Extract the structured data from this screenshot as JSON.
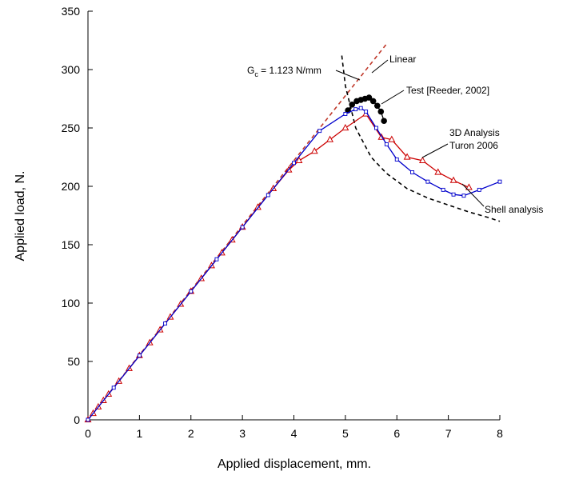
{
  "chart_data": {
    "type": "line",
    "xlabel": "Applied displacement,  mm.",
    "ylabel": "Applied load,  N.",
    "xlim": [
      0,
      8
    ],
    "ylim": [
      0,
      350
    ],
    "xticks": [
      0,
      1,
      2,
      3,
      4,
      5,
      6,
      7,
      8
    ],
    "yticks": [
      0,
      50,
      100,
      150,
      200,
      250,
      300,
      350
    ],
    "grid": false,
    "legend": "none",
    "series": [
      {
        "name": "Linear",
        "style": "dashed",
        "color": "#c0392b",
        "x": [
          0,
          5.8
        ],
        "y": [
          0,
          322
        ]
      },
      {
        "name": "Gc = 1.123 N/mm",
        "style": "dashed",
        "color": "#000000",
        "x": [
          4.93,
          5.0,
          5.2,
          5.5,
          5.8,
          6.2,
          6.6,
          7.0,
          7.4,
          7.8,
          8.0
        ],
        "y": [
          312,
          286,
          250,
          225,
          211,
          198,
          190,
          184,
          178,
          173,
          170
        ]
      },
      {
        "name": "Test [Reeder, 2002]",
        "style": "markers-line",
        "marker": "circle",
        "color": "#000000",
        "x": [
          5.05,
          5.13,
          5.22,
          5.3,
          5.38,
          5.46,
          5.54,
          5.62,
          5.69,
          5.75
        ],
        "y": [
          265,
          270,
          273,
          274,
          275,
          276,
          273,
          269,
          264,
          256
        ]
      },
      {
        "name": "3D Analysis Turon 2006",
        "style": "markers-line",
        "marker": "triangle",
        "color": "#cc0000",
        "x": [
          0,
          0.1,
          0.2,
          0.3,
          0.4,
          0.6,
          0.8,
          1.0,
          1.2,
          1.4,
          1.6,
          1.8,
          2.0,
          2.2,
          2.4,
          2.6,
          2.8,
          3.0,
          3.3,
          3.6,
          3.9,
          4.1,
          4.4,
          4.7,
          5.0,
          5.4,
          5.7,
          5.9,
          6.2,
          6.5,
          6.8,
          7.1,
          7.4
        ],
        "y": [
          0,
          5.5,
          11,
          16.5,
          22,
          33,
          44,
          55,
          66,
          77,
          88,
          99,
          110,
          121,
          132,
          143,
          154,
          165,
          182,
          198,
          214,
          222,
          230,
          240,
          250,
          262,
          242,
          240,
          225,
          222,
          212,
          205,
          199
        ]
      },
      {
        "name": "Shell analysis",
        "style": "markers-line",
        "marker": "square",
        "color": "#0000cc",
        "x": [
          0,
          0.5,
          1.0,
          1.5,
          2.0,
          2.5,
          3.0,
          3.5,
          4.0,
          4.5,
          5.0,
          5.2,
          5.3,
          5.4,
          5.6,
          5.8,
          6.0,
          6.3,
          6.6,
          6.9,
          7.1,
          7.3,
          7.6,
          8.0
        ],
        "y": [
          0,
          27.5,
          55,
          82.5,
          110,
          137.5,
          165,
          192.5,
          220,
          247.5,
          262,
          266,
          267,
          264,
          250,
          236,
          223,
          212,
          204,
          197,
          193,
          192,
          197,
          204
        ]
      }
    ],
    "annotations": {
      "gc_prefix": "G",
      "gc_subscript": "c",
      "gc_value": " = 1.123 N/mm",
      "linear": "Linear",
      "test": "Test [Reeder, 2002]",
      "analysis_3d_line1": "3D Analysis",
      "analysis_3d_line2": "Turon 2006",
      "shell": "Shell analysis"
    }
  }
}
